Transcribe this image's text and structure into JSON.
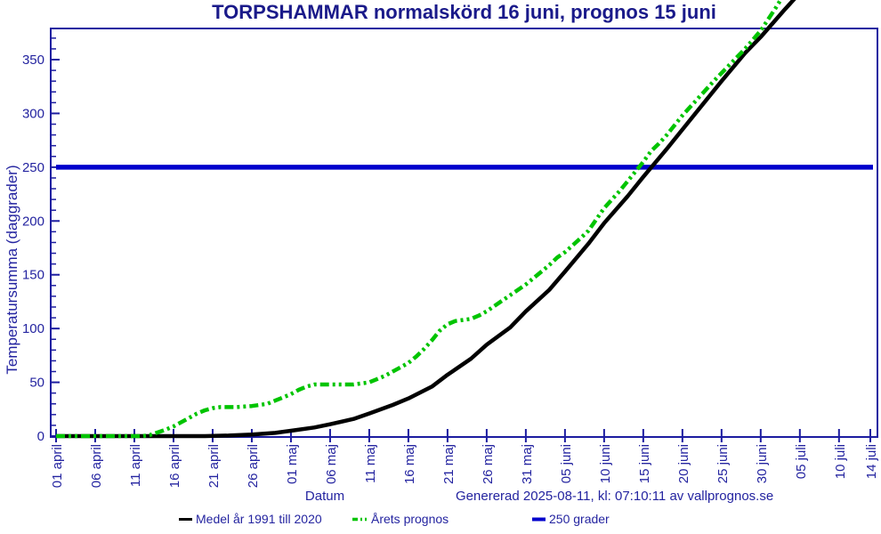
{
  "chart_data": {
    "type": "line",
    "title": "TORPSHAMMAR normalskörd 16 juni, prognos 15 juni",
    "xlabel": "Datum",
    "ylabel": "Temperatursumma (daggrader)",
    "x_axis": {
      "unit": "date (days after 01 april)",
      "range_days": [
        0,
        104
      ],
      "ticks": [
        {
          "d": 0,
          "label": "01 april"
        },
        {
          "d": 5,
          "label": "06 april"
        },
        {
          "d": 10,
          "label": "11 april"
        },
        {
          "d": 15,
          "label": "16 april"
        },
        {
          "d": 20,
          "label": "21 april"
        },
        {
          "d": 25,
          "label": "26 april"
        },
        {
          "d": 30,
          "label": "01 maj"
        },
        {
          "d": 35,
          "label": "06 maj"
        },
        {
          "d": 40,
          "label": "11 maj"
        },
        {
          "d": 45,
          "label": "16 maj"
        },
        {
          "d": 50,
          "label": "21 maj"
        },
        {
          "d": 55,
          "label": "26 maj"
        },
        {
          "d": 60,
          "label": "31 maj"
        },
        {
          "d": 65,
          "label": "05 juni"
        },
        {
          "d": 70,
          "label": "10 juni"
        },
        {
          "d": 75,
          "label": "15 juni"
        },
        {
          "d": 80,
          "label": "20 juni"
        },
        {
          "d": 85,
          "label": "25 juni"
        },
        {
          "d": 90,
          "label": "30 juni"
        },
        {
          "d": 95,
          "label": "05 juli"
        },
        {
          "d": 100,
          "label": "10 juli"
        },
        {
          "d": 104,
          "label": "14 juli"
        }
      ]
    },
    "y_axis": {
      "range": [
        0,
        379
      ],
      "major_step": 50,
      "minor_step": 10,
      "major_tick_labels": [
        0,
        50,
        100,
        150,
        200,
        250,
        300,
        350
      ]
    },
    "grid": false,
    "legend_position": "bottom",
    "reference_line": {
      "value": 250,
      "label": "250 grader",
      "color": "#0000cc"
    },
    "series": [
      {
        "name": "Medel år 1991 till 2020",
        "style": "solid",
        "color": "#000000",
        "points": [
          [
            0,
            0
          ],
          [
            5,
            0
          ],
          [
            10,
            0
          ],
          [
            15,
            0
          ],
          [
            19,
            0
          ],
          [
            22,
            0.5
          ],
          [
            25,
            1.5
          ],
          [
            28,
            3
          ],
          [
            30,
            5
          ],
          [
            33,
            8
          ],
          [
            35,
            11
          ],
          [
            38,
            16
          ],
          [
            40,
            21
          ],
          [
            43,
            29
          ],
          [
            45,
            35
          ],
          [
            48,
            46
          ],
          [
            50,
            57
          ],
          [
            53,
            72
          ],
          [
            55,
            85
          ],
          [
            58,
            101
          ],
          [
            60,
            116
          ],
          [
            63,
            136
          ],
          [
            65,
            153
          ],
          [
            68,
            179
          ],
          [
            70,
            198
          ],
          [
            73,
            223
          ],
          [
            75,
            241
          ],
          [
            78,
            267
          ],
          [
            80,
            285
          ],
          [
            83,
            312
          ],
          [
            85,
            330
          ],
          [
            88,
            356
          ],
          [
            90,
            371
          ],
          [
            93,
            396
          ],
          [
            96,
            420
          ]
        ]
      },
      {
        "name": "Årets prognos",
        "style": "dash-dot-dot",
        "color": "#00c400",
        "points": [
          [
            0,
            0
          ],
          [
            4,
            0
          ],
          [
            8,
            0
          ],
          [
            11,
            0
          ],
          [
            12,
            1
          ],
          [
            14,
            6
          ],
          [
            15,
            9
          ],
          [
            16,
            13
          ],
          [
            17,
            17
          ],
          [
            18,
            21
          ],
          [
            19,
            24
          ],
          [
            20,
            26
          ],
          [
            21,
            27
          ],
          [
            23,
            27
          ],
          [
            25,
            28
          ],
          [
            27,
            30
          ],
          [
            28,
            33
          ],
          [
            30,
            39
          ],
          [
            31,
            43
          ],
          [
            32,
            46
          ],
          [
            33,
            48
          ],
          [
            35,
            48
          ],
          [
            38,
            48
          ],
          [
            40,
            50
          ],
          [
            42,
            56
          ],
          [
            44,
            64
          ],
          [
            45,
            68
          ],
          [
            46,
            74
          ],
          [
            47,
            81
          ],
          [
            48,
            89
          ],
          [
            49,
            98
          ],
          [
            50,
            104
          ],
          [
            51,
            107
          ],
          [
            52,
            108
          ],
          [
            53,
            109
          ],
          [
            54,
            112
          ],
          [
            55,
            116
          ],
          [
            57,
            126
          ],
          [
            58,
            131
          ],
          [
            60,
            141
          ],
          [
            62,
            153
          ],
          [
            63,
            159
          ],
          [
            64,
            166
          ],
          [
            65,
            171
          ],
          [
            67,
            184
          ],
          [
            68,
            191
          ],
          [
            70,
            212
          ],
          [
            71,
            220
          ],
          [
            72,
            228
          ],
          [
            73,
            237
          ],
          [
            74,
            246
          ],
          [
            75,
            255
          ],
          [
            76,
            265
          ],
          [
            77,
            272
          ],
          [
            78,
            280
          ],
          [
            80,
            298
          ],
          [
            82,
            314
          ],
          [
            84,
            330
          ],
          [
            86,
            345
          ],
          [
            88,
            360
          ],
          [
            90,
            377
          ],
          [
            91,
            388
          ],
          [
            92,
            399
          ],
          [
            93,
            411
          ]
        ]
      }
    ],
    "annotations": {
      "normal_harvest_date": "16 juni",
      "forecast_harvest_date": "15 juni"
    }
  },
  "footer": {
    "generated_text": "Genererad 2025-08-11, kl: 07:10:11 av vallprognos.se"
  },
  "colors": {
    "title_text": "#1a1a8a",
    "axis_and_text": "#2424a0",
    "frame": "#1c1ca0",
    "reference_line": "#0000cc",
    "mean_series": "#000000",
    "forecast_series": "#00c400",
    "background": "#ffffff"
  }
}
